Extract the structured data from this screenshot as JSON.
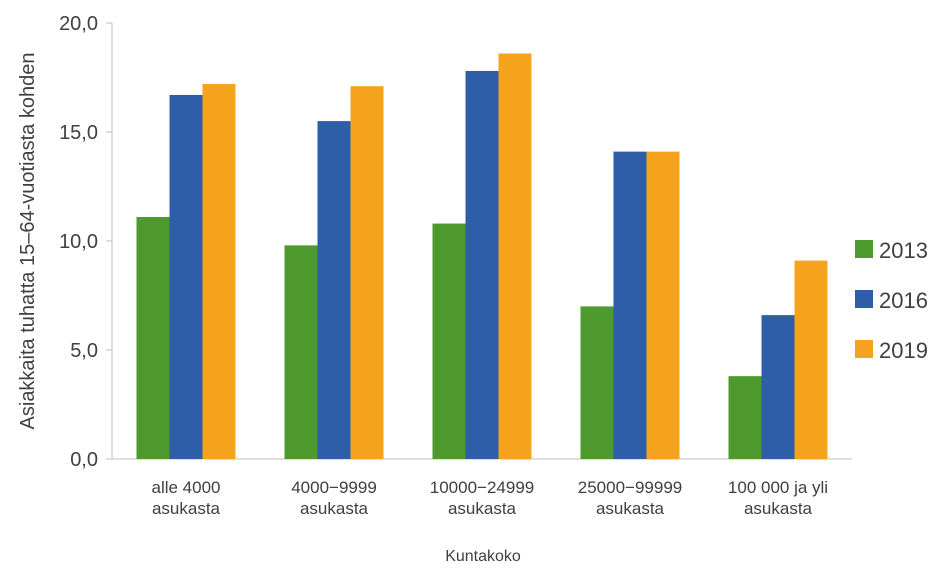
{
  "chart_data": {
    "type": "bar",
    "title": "",
    "xlabel": "Kuntakoko",
    "ylabel": "Asiakkaita tuhatta 15–64-vuotiasta kohden",
    "ylim": [
      0,
      20
    ],
    "yticks": [
      "0,0",
      "5,0",
      "10,0",
      "15,0",
      "20,0"
    ],
    "ytick_values": [
      0,
      5,
      10,
      15,
      20
    ],
    "grid": false,
    "legend_position": "right",
    "categories": [
      [
        "alle 4000",
        "asukasta"
      ],
      [
        "4000−9999",
        "asukasta"
      ],
      [
        "10000−24999",
        "asukasta"
      ],
      [
        "25000−99999",
        "asukasta"
      ],
      [
        "100 000 ja yli",
        "asukasta"
      ]
    ],
    "series": [
      {
        "name": "2013",
        "color": "#4e9a2f",
        "values": [
          11.1,
          9.8,
          10.8,
          7.0,
          3.8
        ]
      },
      {
        "name": "2016",
        "color": "#2e5ea8",
        "values": [
          16.7,
          15.5,
          17.8,
          14.1,
          6.6
        ]
      },
      {
        "name": "2019",
        "color": "#f5a31c",
        "values": [
          17.2,
          17.1,
          18.6,
          14.1,
          9.1
        ]
      }
    ]
  }
}
